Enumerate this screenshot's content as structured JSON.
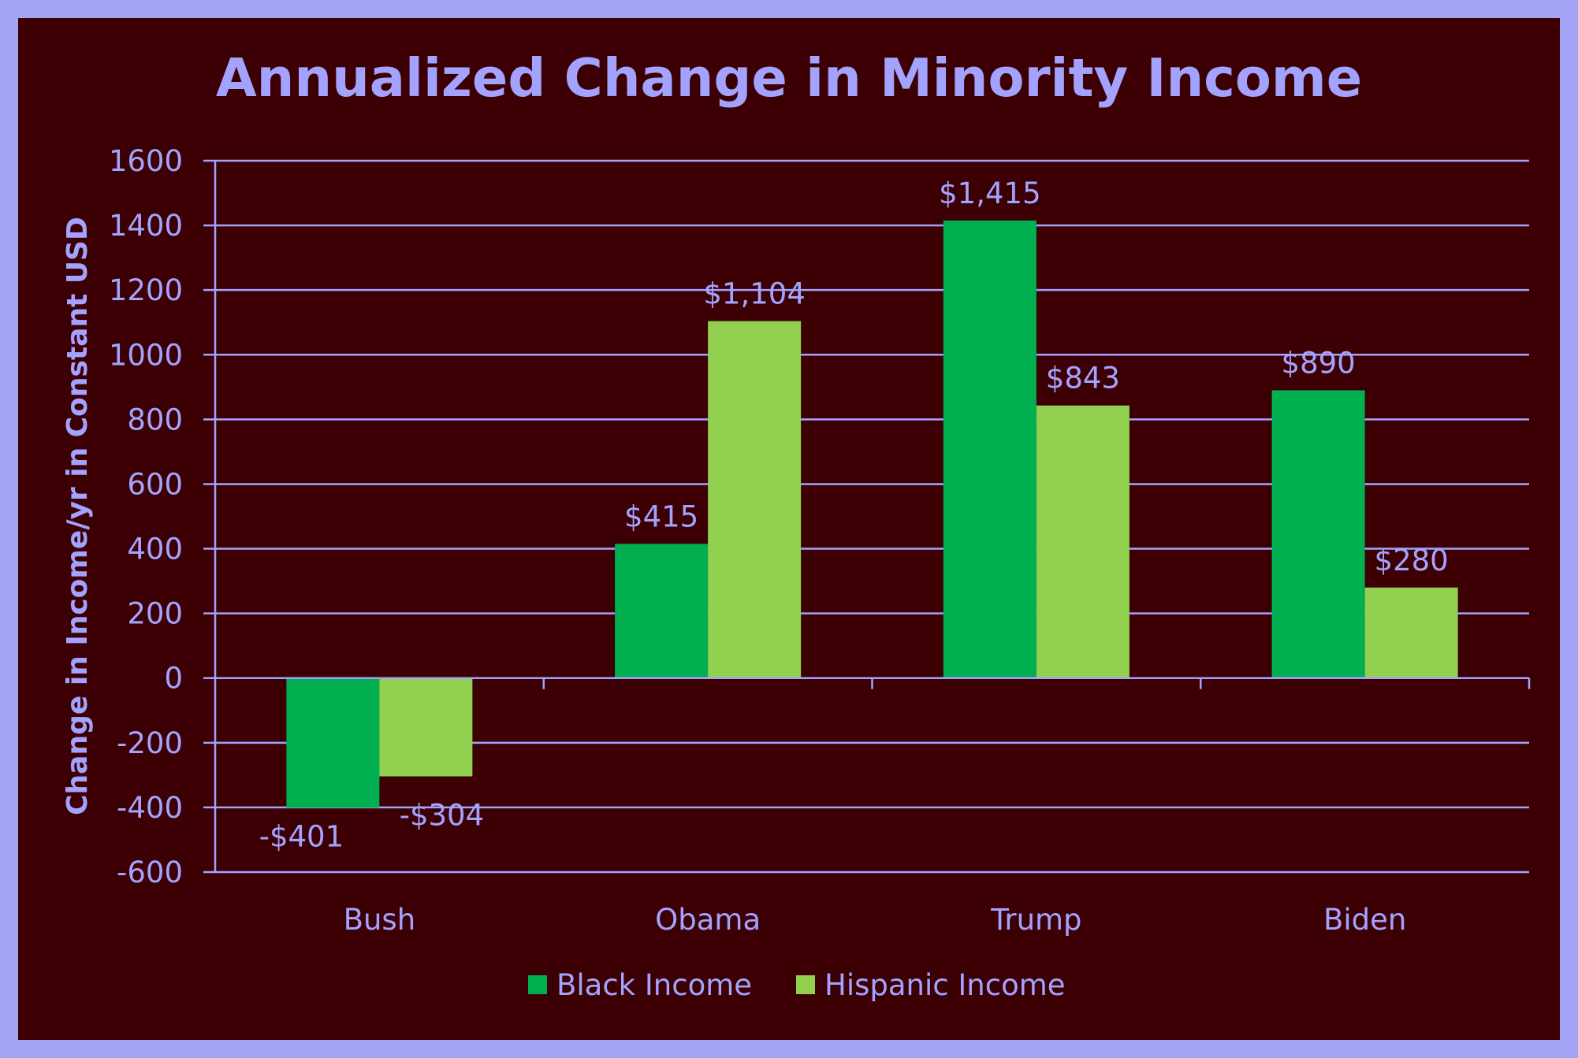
{
  "chart_data": {
    "type": "bar",
    "title": "Annualized Change in Minority  Income",
    "xlabel": "",
    "ylabel": "Change in Income/yr in Constant USD",
    "ylim": [
      -600,
      1600
    ],
    "ytick_step": 200,
    "yticks": [
      "1600",
      "1400",
      "1200",
      "1000",
      "800",
      "600",
      "400",
      "200",
      "0",
      "-200",
      "-400",
      "-600"
    ],
    "categories": [
      "Bush",
      "Obama",
      "Trump",
      "Biden"
    ],
    "series": [
      {
        "name": "Black Income",
        "color": "#00b050",
        "values": [
          -401,
          415,
          1415,
          890
        ],
        "labels": [
          "-$401",
          "$415",
          "$1,415",
          "$890"
        ]
      },
      {
        "name": "Hispanic Income",
        "color": "#92d050",
        "values": [
          -304,
          1104,
          843,
          280
        ],
        "labels": [
          "-$304",
          "$1,104",
          "$843",
          "$280"
        ]
      }
    ],
    "grid": true,
    "legend": "bottom",
    "colors": {
      "frame": "#a4a4f4",
      "background": "#3c0004",
      "text": "#a3a3ff"
    }
  }
}
